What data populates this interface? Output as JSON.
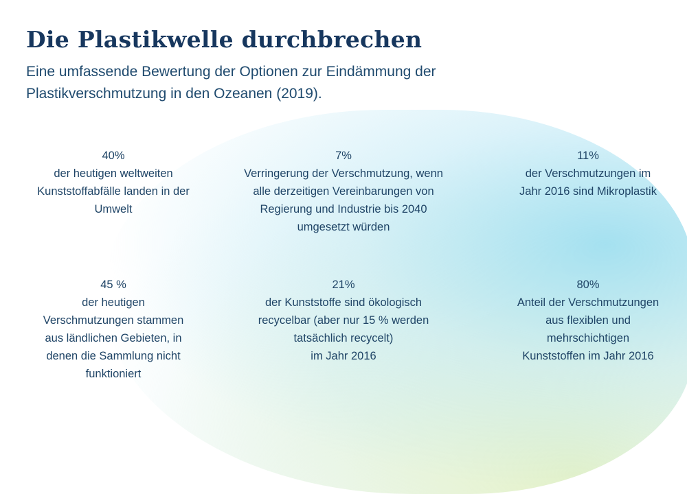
{
  "header": {
    "title": "Die Plastikwelle durchbrechen",
    "subtitle": "Eine umfassende Bewertung der Optionen zur Eindämmung der Plastikverschmutzung in den Ozeanen (2019)."
  },
  "stats": [
    {
      "value": "40%",
      "description": "der heutigen weltweiten\nKunststoffabfälle landen in der\nUmwelt"
    },
    {
      "value": "7%",
      "description": "Verringerung der Verschmutzung, wenn\nalle derzeitigen Vereinbarungen von\nRegierung und Industrie bis 2040\numgesetzt würden"
    },
    {
      "value": "11%",
      "description": "der Verschmutzungen im\nJahr 2016 sind Mikroplastik"
    },
    {
      "value": "45 %",
      "description": "der heutigen\nVerschmutzungen stammen\naus ländlichen Gebieten, in\ndenen die Sammlung nicht\nfunktioniert"
    },
    {
      "value": "21%",
      "description": "der Kunststoffe sind ökologisch\nrecycelbar (aber nur 15 % werden\ntatsächlich recycelt)\nim Jahr 2016"
    },
    {
      "value": "80%",
      "description": "Anteil der Verschmutzungen\naus flexiblen und\nmehrschichtigen\nKunststoffen im Jahr 2016"
    }
  ]
}
